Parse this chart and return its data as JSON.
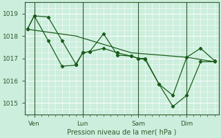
{
  "xlabel": "Pression niveau de la mer( hPa )",
  "bg_color": "#cceedd",
  "grid_major_color": "#ffffff",
  "grid_minor_color": "#ffffff",
  "line_color": "#1a5c1a",
  "tick_color": "#2d5a2d",
  "border_color": "#2d5a2d",
  "ylim": [
    1014.5,
    1019.5
  ],
  "yticks": [
    1015,
    1016,
    1017,
    1018,
    1019
  ],
  "xtick_labels": [
    "Ven",
    "Lun",
    "Sam",
    "Dim"
  ],
  "xtick_positions": [
    0.5,
    4.0,
    8.0,
    11.5
  ],
  "vline_positions": [
    0.5,
    4.0,
    8.0,
    11.5
  ],
  "xlim": [
    -0.2,
    13.8
  ],
  "line1_x": [
    0.0,
    0.5,
    1.5,
    2.5,
    3.5,
    4.0,
    4.5,
    5.5,
    6.5,
    7.5,
    8.0,
    8.5,
    9.5,
    10.5,
    11.5,
    12.5,
    13.5
  ],
  "line1_y": [
    1018.3,
    1018.9,
    1018.85,
    1017.8,
    1016.75,
    1017.25,
    1017.3,
    1017.45,
    1017.25,
    1017.1,
    1017.0,
    1016.95,
    1015.85,
    1015.35,
    1017.05,
    1017.45,
    1016.9
  ],
  "line2_x": [
    0.0,
    0.5,
    1.5,
    2.5,
    3.5,
    4.0,
    4.5,
    5.5,
    6.5,
    7.5,
    8.0,
    8.5,
    9.5,
    10.5,
    11.5,
    12.5,
    13.5
  ],
  "line2_y": [
    1018.3,
    1018.9,
    1017.8,
    1016.65,
    1016.7,
    1017.25,
    1017.3,
    1018.1,
    1017.15,
    1017.1,
    1017.0,
    1017.0,
    1015.85,
    1014.85,
    1015.35,
    1016.85,
    1016.85
  ],
  "line3_x": [
    0.0,
    3.5,
    7.5,
    11.5,
    13.5
  ],
  "line3_y": [
    1018.3,
    1018.0,
    1017.25,
    1017.05,
    1016.85
  ]
}
